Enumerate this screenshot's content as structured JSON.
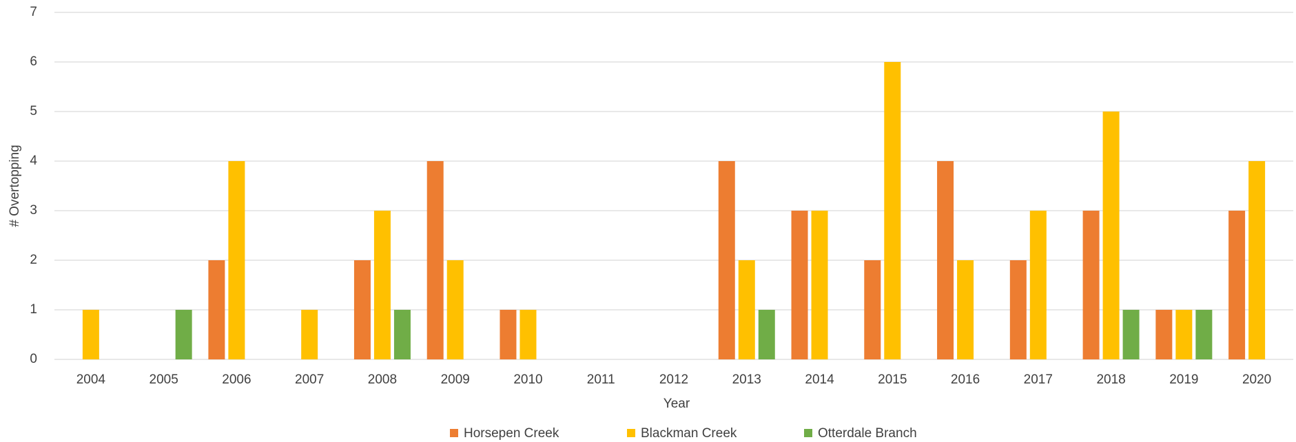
{
  "chart_data": {
    "type": "bar",
    "x_label": "Year",
    "y_label": "# Overtopping",
    "categories": [
      "2004",
      "2005",
      "2006",
      "2007",
      "2008",
      "2009",
      "2010",
      "2011",
      "2012",
      "2013",
      "2014",
      "2015",
      "2016",
      "2017",
      "2018",
      "2019",
      "2020"
    ],
    "series": [
      {
        "name": "Horsepen Creek",
        "color": "#ed7d31",
        "values": [
          0,
          0,
          2,
          0,
          2,
          4,
          1,
          0,
          0,
          4,
          3,
          2,
          4,
          2,
          3,
          1,
          3
        ]
      },
      {
        "name": "Blackman Creek",
        "color": "#ffc000",
        "values": [
          1,
          0,
          4,
          1,
          3,
          2,
          1,
          0,
          0,
          2,
          3,
          6,
          2,
          3,
          5,
          1,
          4
        ]
      },
      {
        "name": "Otterdale Branch",
        "color": "#70ad47",
        "values": [
          0,
          1,
          0,
          0,
          1,
          0,
          0,
          0,
          0,
          1,
          0,
          0,
          0,
          0,
          1,
          1,
          0
        ]
      }
    ],
    "ylim": [
      0,
      7
    ],
    "yticks": [
      0,
      1,
      2,
      3,
      4,
      5,
      6,
      7
    ],
    "grid": true,
    "legend": "bottom"
  }
}
